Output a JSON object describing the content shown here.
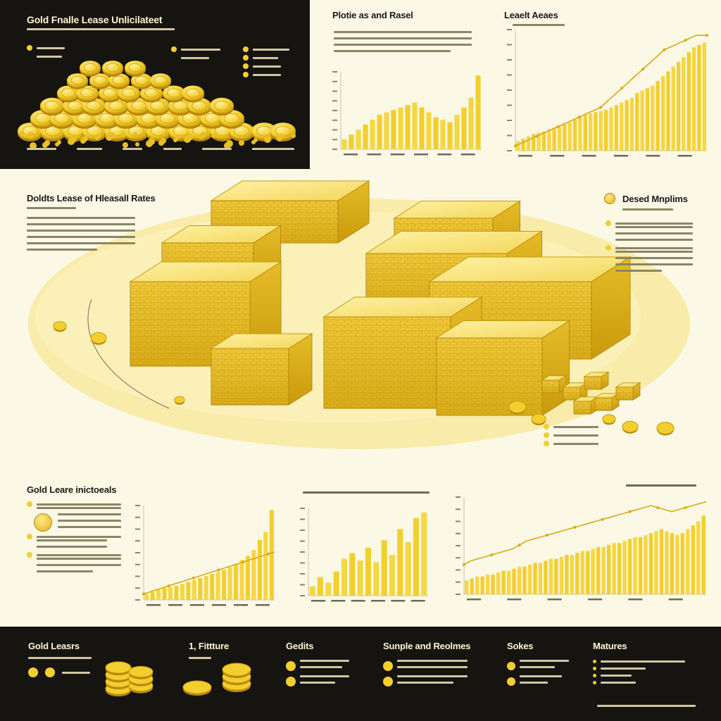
{
  "top_left": {
    "title": "Gold Fnalle Lease Unlicilateet",
    "bullets_left_count": 2,
    "bullets_mid_count": 2,
    "bullets_right_count": 4
  },
  "top_middle": {
    "title": "Plotie as and Rasel"
  },
  "top_right": {
    "title": "Leaelt Aeaes"
  },
  "middle_left": {
    "title": "Doldts Lease of Hleasall Rates"
  },
  "middle_right": {
    "title": "Desed Mnplims"
  },
  "bottom_left": {
    "title": "Gold Leare inictoeals"
  },
  "footer": {
    "col1_title": "Gold Leasrs",
    "col2_title": "1, Fittture",
    "col3_title": "Gedits",
    "col4_title": "Sunple and Reolmes",
    "col5_title": "Sokes",
    "col6_title": "Matures"
  },
  "colors": {
    "gold": "#f2cf2e",
    "gold_dark": "#d8a912",
    "background": "#fbf8e6",
    "dark": "#151410"
  },
  "chart_data": [
    {
      "type": "bar",
      "values": [
        8,
        12,
        16,
        20,
        24,
        28,
        30,
        32,
        34,
        36,
        38,
        34,
        30,
        26,
        24,
        22,
        28,
        34,
        42,
        60
      ]
    },
    {
      "type": "bar",
      "values": [
        8,
        10,
        12,
        14,
        15,
        16,
        18,
        19,
        20,
        22,
        24,
        26,
        28,
        30,
        31,
        32,
        33,
        34,
        36,
        38,
        40,
        42,
        44,
        48,
        50,
        52,
        54,
        58,
        62,
        66,
        70,
        74,
        78,
        82,
        86,
        88,
        90
      ],
      "line": [
        4,
        6,
        8,
        10,
        12,
        14,
        16,
        18,
        20,
        22,
        24,
        26,
        28,
        30,
        32,
        34,
        36,
        40,
        44,
        48,
        52,
        56,
        60,
        64,
        68,
        72,
        76,
        80,
        84,
        86,
        88,
        90,
        92,
        94,
        96,
        96,
        96
      ]
    },
    {
      "type": "bar",
      "values": [
        6,
        8,
        10,
        12,
        13,
        14,
        16,
        18,
        20,
        22,
        24,
        26,
        28,
        30,
        33,
        36,
        40,
        44,
        50,
        60,
        68,
        90
      ],
      "line": [
        6,
        8,
        10,
        12,
        14,
        16,
        18,
        20,
        22,
        24,
        26,
        28,
        30,
        32,
        34,
        36,
        38,
        40,
        42,
        44,
        46,
        48
      ]
    },
    {
      "type": "bar",
      "values": [
        10,
        20,
        14,
        26,
        40,
        46,
        38,
        52,
        36,
        60,
        44,
        72,
        58,
        84,
        90
      ]
    },
    {
      "type": "bar",
      "values": [
        14,
        16,
        18,
        18,
        20,
        20,
        22,
        24,
        24,
        26,
        28,
        28,
        30,
        32,
        32,
        34,
        36,
        36,
        38,
        40,
        40,
        42,
        44,
        44,
        46,
        48,
        48,
        50,
        52,
        52,
        54,
        56,
        58,
        58,
        60,
        62,
        64,
        66,
        64,
        62,
        60,
        62,
        66,
        70,
        74,
        80
      ],
      "line": [
        30,
        34,
        36,
        38,
        40,
        42,
        44,
        46,
        50,
        54,
        56,
        58,
        60,
        62,
        64,
        66,
        68,
        70,
        72,
        74,
        76,
        78,
        80,
        82,
        84,
        86,
        88,
        90,
        88,
        86,
        84,
        86,
        88,
        90,
        92,
        94
      ]
    }
  ]
}
